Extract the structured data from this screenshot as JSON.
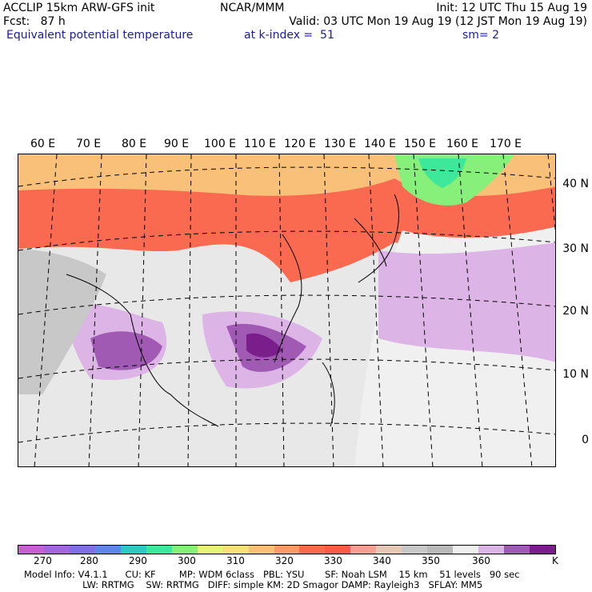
{
  "header": {
    "line1_left": "ACCLIP 15km ARW-GFS init",
    "line1_center": "NCAR/MMM",
    "line1_right": "Init: 12 UTC Thu 15 Aug 19",
    "line2_left": "Fcst:   87 h",
    "line2_right": "Valid: 03 UTC Mon 19 Aug 19 (12 JST Mon 19 Aug 19)",
    "line3_field": "Equivalent potential temperature",
    "line3_level": "at k-index =  51",
    "line3_smooth": "sm= 2"
  },
  "map": {
    "lon_labels": [
      "60 E",
      "70 E",
      "80 E",
      "90 E",
      "100 E",
      "110 E",
      "120 E",
      "130 E",
      "140 E",
      "150 E",
      "160 E",
      "170 E"
    ],
    "lat_labels": [
      "40 N",
      "30 N",
      "20 N",
      "10 N",
      "0"
    ]
  },
  "colorbar": {
    "unit": "K",
    "tick_labels": [
      "270",
      "280",
      "290",
      "300",
      "310",
      "320",
      "330",
      "340",
      "350",
      "360"
    ],
    "colors": [
      "#c85fd0",
      "#a566dc",
      "#7f6fe3",
      "#5f88e6",
      "#2ec9c4",
      "#3ee89a",
      "#86f07a",
      "#e6f47a",
      "#f9e07a",
      "#f9c07a",
      "#f99a6a",
      "#f96a50",
      "#f95a4a",
      "#f5a090",
      "#e6c8b4",
      "#c8c8c8",
      "#b9b9b9",
      "#f0f0f0",
      "#dcb4e6",
      "#a05ab4",
      "#7a1e8c"
    ]
  },
  "model_info": {
    "line1": "Model Info: V4.1.1      CU: KF        MP: WDM 6class   PBL: YSU       SF: Noah LSM    15 km    51 levels   90 sec",
    "line2": "                    LW: RRTMG    SW: RRTMG   DIFF: simple KM: 2D Smagor DAMP: Rayleigh3   SFLAY: MM5"
  }
}
